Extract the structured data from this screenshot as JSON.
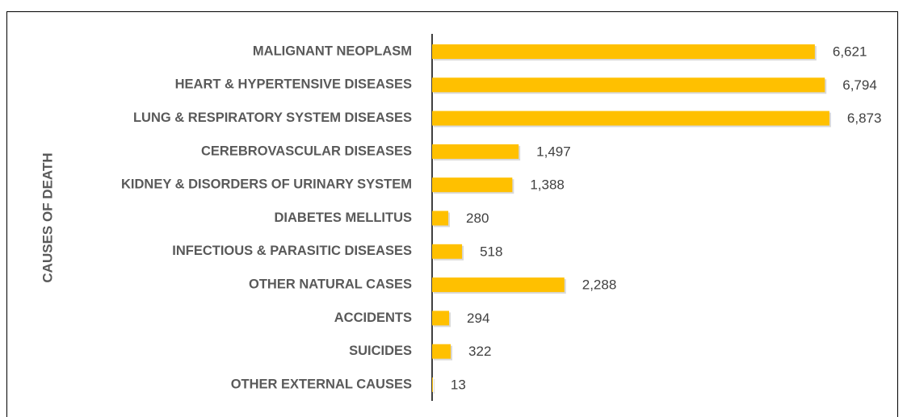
{
  "chart_data": {
    "type": "barh",
    "y_label": "CAUSES OF DEATH",
    "categories": [
      "MALIGNANT NEOPLASM",
      "HEART & HYPERTENSIVE DISEASES",
      "LUNG & RESPIRATORY SYSTEM DISEASES",
      "CEREBROVASCULAR DISEASES",
      "KIDNEY & DISORDERS OF URINARY SYSTEM",
      "DIABETES MELLITUS",
      "INFECTIOUS & PARASITIC DISEASES",
      "OTHER NATURAL CASES",
      "ACCIDENTS",
      "SUICIDES",
      "OTHER EXTERNAL CAUSES"
    ],
    "values": [
      6621,
      6794,
      6873,
      1497,
      1388,
      280,
      518,
      2288,
      294,
      322,
      13
    ],
    "value_labels": [
      "6,621",
      "6,794",
      "6,873",
      "1,497",
      "1,388",
      "280",
      "518",
      "2,288",
      "294",
      "322",
      "13"
    ],
    "color": "#FFC000",
    "xlim": [
      0,
      7000
    ]
  }
}
